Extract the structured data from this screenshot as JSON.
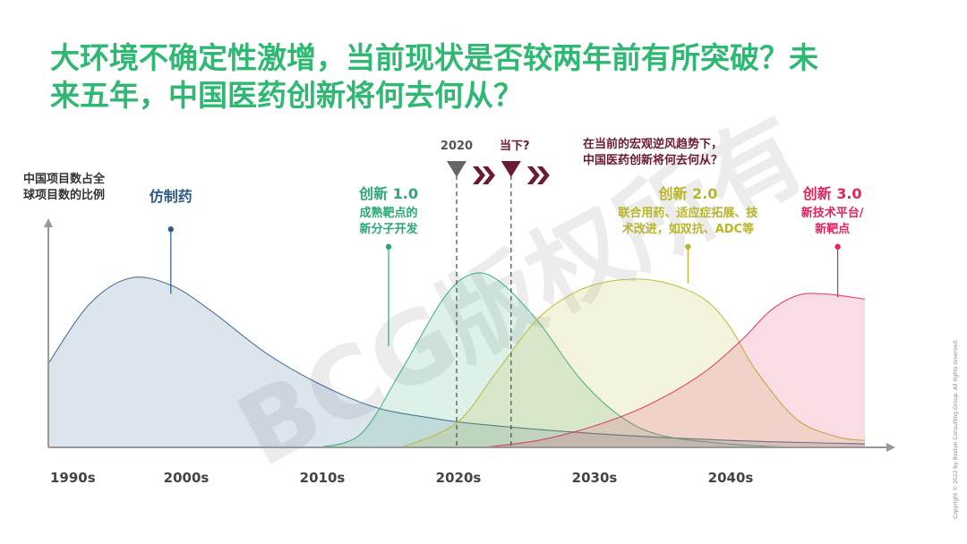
{
  "title": [
    "大环境不确定性激增，当前现状是否较两年前有所突破？未",
    "来五年，中国医药创新将何去何从？"
  ],
  "ylabel": [
    "中国项目数占全",
    "球项目数的比例"
  ],
  "copyright": "Copyright © 2022 by Boston Consulting Group. All rights reserved.",
  "watermark": "BCG版权所有",
  "colors": {
    "title": "#2eb872",
    "generic": "#2e5b87",
    "innov1": "#2aa876",
    "innov2": "#b8b52a",
    "innov3": "#e0245e",
    "marker": "#6b1a33",
    "axis": "#999999"
  },
  "chart_data": {
    "type": "area",
    "xlabel": "",
    "ylabel": "中国项目数占全球项目数的比例",
    "x_ticks": [
      "1990s",
      "2000s",
      "2010s",
      "2020s",
      "2030s",
      "2040s"
    ],
    "xlim": [
      1990,
      2050
    ],
    "series": [
      {
        "name": "仿制药",
        "color": "#2e5b87",
        "x": [
          1990,
          1993,
          1996,
          1999,
          2002,
          2006,
          2010,
          2014,
          2018,
          2022,
          2030,
          2040,
          2050
        ],
        "y": [
          48,
          82,
          97,
          93,
          78,
          54,
          36,
          23,
          17,
          13,
          8,
          4,
          2
        ]
      },
      {
        "name": "创新 1.0",
        "color": "#2aa876",
        "x": [
          2010,
          2013,
          2016,
          2019,
          2021,
          2023,
          2026,
          2029,
          2032,
          2035,
          2040,
          2045,
          2050
        ],
        "y": [
          0,
          8,
          45,
          85,
          99,
          96,
          72,
          40,
          18,
          7,
          2,
          0,
          0
        ]
      },
      {
        "name": "创新 2.0",
        "color": "#b8b52a",
        "x": [
          2016,
          2020,
          2023,
          2026,
          2029,
          2032,
          2035,
          2038,
          2040,
          2042,
          2045,
          2048,
          2050
        ],
        "y": [
          0,
          14,
          44,
          74,
          90,
          96,
          95,
          86,
          70,
          44,
          16,
          6,
          4
        ]
      },
      {
        "name": "创新 3.0",
        "color": "#e0245e",
        "x": [
          2022,
          2026,
          2030,
          2034,
          2038,
          2041,
          2043,
          2045,
          2047,
          2050
        ],
        "y": [
          0,
          4,
          12,
          24,
          42,
          62,
          78,
          87,
          88,
          85
        ]
      }
    ],
    "markers": [
      {
        "label": "2020",
        "x": 2020
      },
      {
        "label": "当下?",
        "x": 2024
      }
    ],
    "annotations": [
      {
        "series": 0,
        "x": 1999,
        "y": 125,
        "title": "仿制药",
        "lines": []
      },
      {
        "series": 1,
        "x": 2015,
        "y": 115,
        "title": "创新 1.0",
        "lines": [
          "成熟靶点的",
          "新分子开发"
        ]
      },
      {
        "series": 2,
        "x": 2037,
        "y": 115,
        "title": "创新 2.0",
        "lines": [
          "联合用药、适应症拓展、技",
          "术改进，如双抗、ADC等"
        ]
      },
      {
        "series": 3,
        "x": 2048,
        "y": 115,
        "title": "创新 3.0",
        "lines": [
          "新技术平台/",
          "新靶点"
        ]
      }
    ],
    "note": [
      "在当前的宏观逆风趋势下，",
      "中国医药创新将何去何从？"
    ]
  }
}
